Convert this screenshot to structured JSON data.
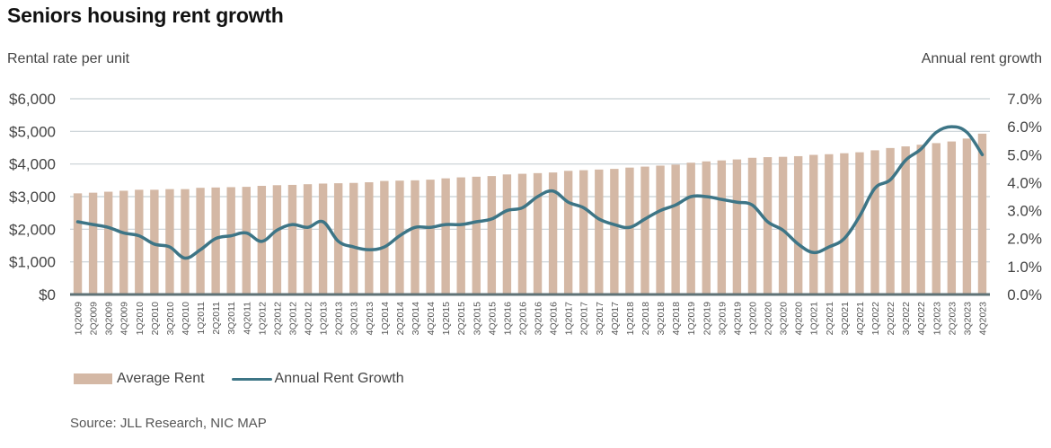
{
  "chart_data": {
    "type": "bar",
    "title": "Seniors housing rent growth",
    "left_axis_title": "Rental rate per unit",
    "right_axis_title": "Annual rent growth",
    "left_ylim": [
      0,
      6000
    ],
    "right_ylim": [
      0,
      7
    ],
    "left_ticks": [
      "$0",
      "$1,000",
      "$2,000",
      "$3,000",
      "$4,000",
      "$5,000",
      "$6,000"
    ],
    "right_ticks": [
      "0.0%",
      "1.0%",
      "2.0%",
      "3.0%",
      "4.0%",
      "5.0%",
      "6.0%",
      "7.0%"
    ],
    "grid": true,
    "legend_position": "bottom-left",
    "colors": {
      "bar": "#d4b8a5",
      "line": "#3d7586",
      "grid": "#c8d0d4",
      "baseline": "#5f7276"
    },
    "categories": [
      "1Q2009",
      "2Q2009",
      "3Q2009",
      "4Q2009",
      "1Q2010",
      "2Q2010",
      "3Q2010",
      "4Q2010",
      "1Q2011",
      "2Q2011",
      "3Q2011",
      "4Q2011",
      "1Q2012",
      "2Q2012",
      "3Q2012",
      "4Q2012",
      "1Q2013",
      "2Q2013",
      "3Q2013",
      "4Q2013",
      "1Q2014",
      "2Q2014",
      "3Q2014",
      "4Q2014",
      "1Q2015",
      "2Q2015",
      "3Q2015",
      "4Q2015",
      "1Q2016",
      "2Q2016",
      "3Q2016",
      "4Q2016",
      "1Q2017",
      "2Q2017",
      "3Q2017",
      "4Q2017",
      "1Q2018",
      "2Q2018",
      "3Q2018",
      "4Q2018",
      "1Q2019",
      "2Q2019",
      "3Q2019",
      "4Q2019",
      "1Q2020",
      "2Q2020",
      "3Q2020",
      "4Q2020",
      "1Q2021",
      "2Q2021",
      "3Q2021",
      "4Q2021",
      "1Q2022",
      "2Q2022",
      "3Q2022",
      "4Q2022",
      "1Q2023",
      "2Q2023",
      "3Q2023",
      "4Q2023"
    ],
    "series": [
      {
        "name": "Average Rent",
        "type": "bar",
        "axis": "left",
        "values": [
          3100,
          3120,
          3150,
          3180,
          3210,
          3210,
          3230,
          3230,
          3270,
          3280,
          3290,
          3300,
          3330,
          3350,
          3360,
          3380,
          3400,
          3410,
          3420,
          3440,
          3480,
          3490,
          3500,
          3520,
          3560,
          3590,
          3610,
          3630,
          3680,
          3700,
          3720,
          3740,
          3790,
          3810,
          3830,
          3850,
          3890,
          3920,
          3950,
          3980,
          4040,
          4080,
          4110,
          4140,
          4190,
          4210,
          4220,
          4240,
          4280,
          4300,
          4330,
          4360,
          4420,
          4490,
          4540,
          4590,
          4640,
          4690,
          4780,
          4930
        ]
      },
      {
        "name": "Annual Rent Growth",
        "type": "line",
        "axis": "right",
        "values": [
          2.6,
          2.5,
          2.4,
          2.2,
          2.1,
          1.8,
          1.7,
          1.3,
          1.6,
          2.0,
          2.1,
          2.2,
          1.9,
          2.3,
          2.5,
          2.4,
          2.6,
          1.9,
          1.7,
          1.6,
          1.7,
          2.1,
          2.4,
          2.4,
          2.5,
          2.5,
          2.6,
          2.7,
          3.0,
          3.1,
          3.5,
          3.7,
          3.3,
          3.1,
          2.7,
          2.5,
          2.4,
          2.7,
          3.0,
          3.2,
          3.5,
          3.5,
          3.4,
          3.3,
          3.2,
          2.6,
          2.3,
          1.8,
          1.5,
          1.7,
          2.0,
          2.8,
          3.8,
          4.1,
          4.8,
          5.2,
          5.8,
          6.0,
          5.8,
          5.0
        ]
      }
    ]
  },
  "legend": {
    "bar_label": "Average Rent",
    "line_label": "Annual Rent Growth"
  },
  "source": "Source: JLL Research, NIC MAP"
}
